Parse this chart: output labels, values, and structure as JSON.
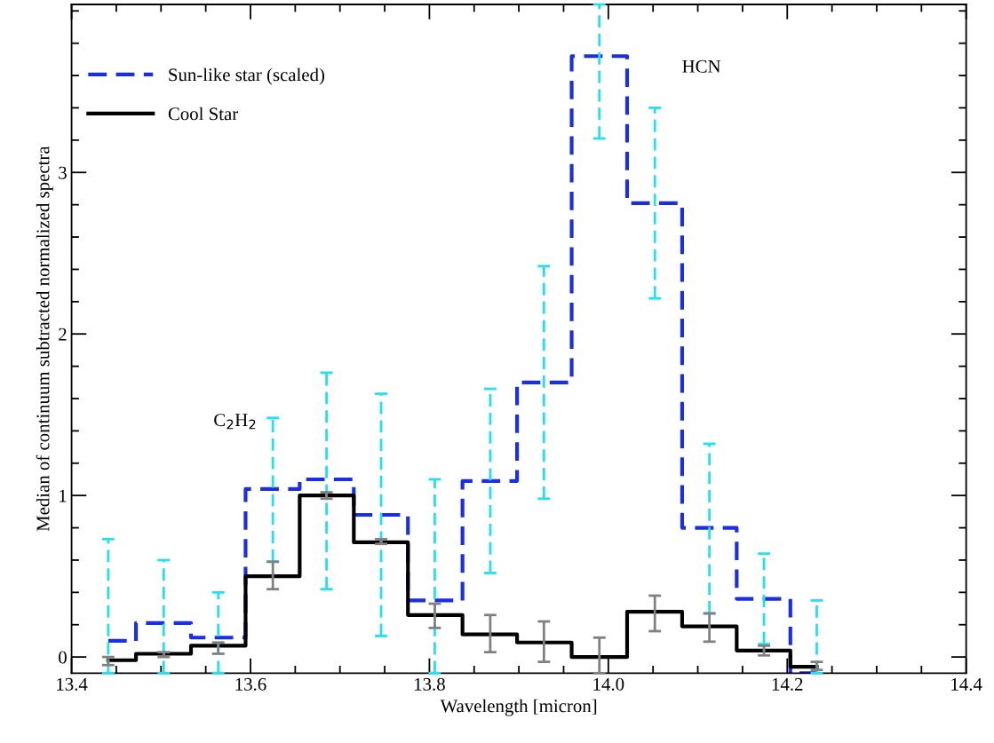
{
  "chart_data": {
    "type": "step",
    "xlabel": "Wavelength [micron]",
    "ylabel": "Median of continuum subtracted normalized spectra",
    "x": [
      13.441,
      13.503,
      13.564,
      13.625,
      13.685,
      13.746,
      13.806,
      13.868,
      13.928,
      13.99,
      14.052,
      14.113,
      14.174,
      14.233
    ],
    "series": [
      {
        "name": "Sun-like star (scaled)",
        "color": "#1a2ee6",
        "line_style": "dashed",
        "values": [
          0.1,
          0.21,
          0.12,
          1.04,
          1.1,
          0.88,
          0.35,
          1.09,
          1.7,
          3.72,
          2.81,
          0.8,
          0.36,
          -0.1
        ],
        "errors": [
          [
            -0.1,
            0.73
          ],
          [
            -0.1,
            0.6
          ],
          [
            -0.1,
            0.4
          ],
          [
            0.59,
            1.48
          ],
          [
            0.42,
            1.76
          ],
          [
            0.13,
            1.63
          ],
          [
            -0.1,
            1.1
          ],
          [
            0.52,
            1.66
          ],
          [
            0.98,
            2.42
          ],
          [
            3.21,
            4.04
          ],
          [
            2.22,
            3.4
          ],
          [
            0.27,
            1.32
          ],
          [
            0.08,
            0.64
          ],
          [
            -0.1,
            0.35
          ]
        ]
      },
      {
        "name": "Cool Star",
        "color": "#000000",
        "line_style": "solid",
        "values": [
          -0.02,
          0.02,
          0.07,
          0.5,
          1.0,
          0.71,
          0.26,
          0.14,
          0.09,
          0.0,
          0.28,
          0.19,
          0.04,
          -0.06
        ],
        "errors": [
          [
            -0.05,
            0.0
          ],
          [
            0.0,
            0.03
          ],
          [
            0.02,
            0.09
          ],
          [
            0.42,
            0.59
          ],
          [
            0.98,
            1.02
          ],
          [
            0.7,
            0.73
          ],
          [
            0.18,
            0.33
          ],
          [
            0.03,
            0.26
          ],
          [
            -0.03,
            0.22
          ],
          [
            -0.1,
            0.12
          ],
          [
            0.16,
            0.38
          ],
          [
            0.095,
            0.27
          ],
          [
            0.01,
            0.07
          ],
          [
            -0.08,
            -0.03
          ]
        ]
      }
    ],
    "annotations": [
      "C$_{2}$H$_{2}$",
      "HCN"
    ],
    "xlim": [
      13.4,
      14.4
    ],
    "xticks": [
      13.4,
      13.6,
      13.8,
      {
        "value": 14.0,
        "label": "14.0"
      },
      14.2,
      14.4
    ],
    "ylim": [
      -0.1,
      4.04
    ],
    "yticks": [
      0,
      1,
      2,
      3
    ],
    "legend": "top left",
    "grid": false
  }
}
